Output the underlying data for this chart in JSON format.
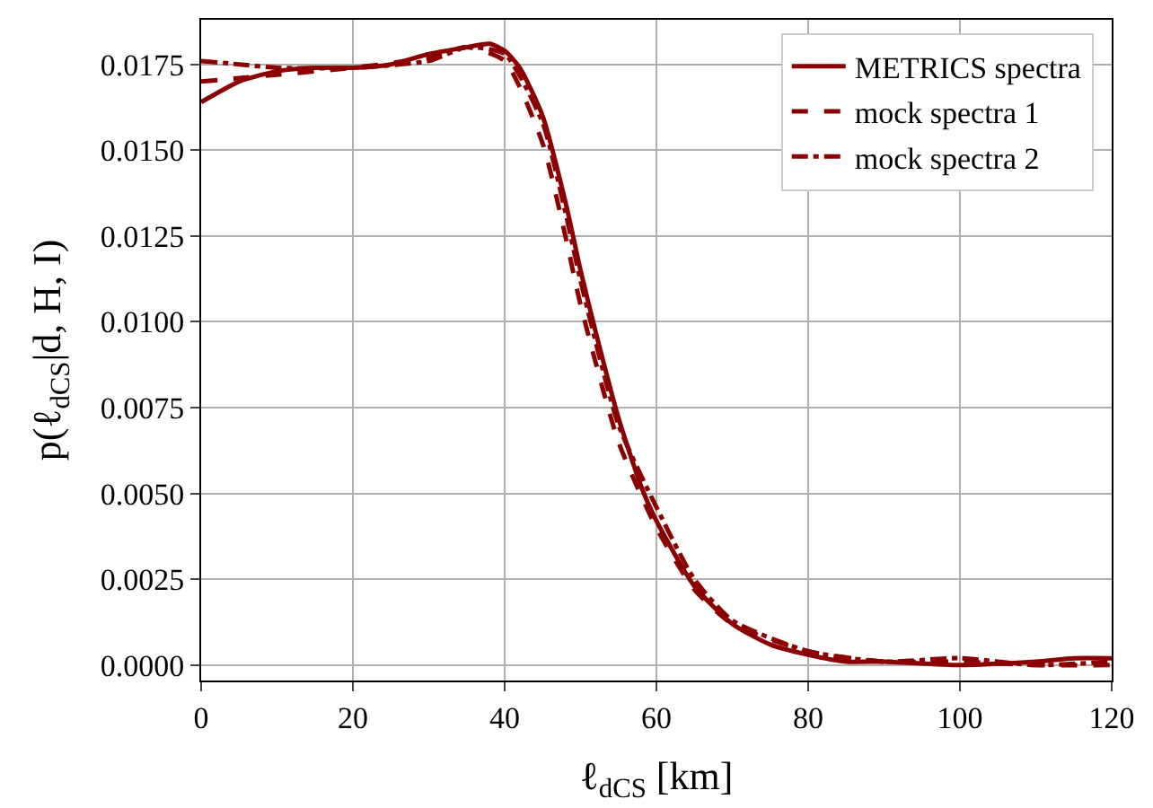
{
  "chart_data": {
    "type": "line",
    "xlabel": "ℓ$_{dCS}$ [km]",
    "ylabel": "p(ℓ$_{dCS}$|d, H, I)",
    "xlim": [
      0,
      120
    ],
    "xticks": [
      0,
      20,
      40,
      60,
      80,
      100,
      120
    ],
    "ylim": [
      -0.00045,
      0.0188
    ],
    "yticks": [
      {
        "value": 0,
        "label": "0.0000"
      },
      {
        "value": 0.0025,
        "label": "0.0025"
      },
      {
        "value": 0.005,
        "label": "0.0050"
      },
      {
        "value": 0.0075,
        "label": "0.0075"
      },
      {
        "value": 0.01,
        "label": "0.0100"
      },
      {
        "value": 0.0125,
        "label": "0.0125"
      },
      {
        "value": 0.015,
        "label": "0.0150"
      },
      {
        "value": 0.0175,
        "label": "0.0175"
      }
    ],
    "grid": true,
    "legend": "top right",
    "series": [
      {
        "name": "METRICS spectra",
        "color": "#8b0000",
        "line_style": "solid",
        "x": [
          0,
          5,
          10,
          15,
          20,
          25,
          30,
          35,
          38,
          40,
          42,
          45,
          48,
          50,
          52,
          55,
          58,
          60,
          65,
          70,
          75,
          80,
          85,
          90,
          100,
          110,
          115,
          120
        ],
        "values": [
          0.0164,
          0.017,
          0.0173,
          0.0174,
          0.0174,
          0.0175,
          0.0178,
          0.018,
          0.0181,
          0.0179,
          0.0174,
          0.016,
          0.0135,
          0.0115,
          0.0097,
          0.0072,
          0.0052,
          0.0042,
          0.0023,
          0.0012,
          0.0006,
          0.0003,
          0.0001,
          0.0001,
          0.0,
          0.0001,
          0.0002,
          0.0002
        ]
      },
      {
        "name": "mock spectra 1",
        "color": "#8b0000",
        "line_style": "dashed",
        "x": [
          0,
          5,
          10,
          20,
          30,
          35,
          40,
          45,
          48,
          50,
          55,
          60,
          65,
          70,
          80,
          90,
          100,
          110,
          120
        ],
        "values": [
          0.017,
          0.0171,
          0.0172,
          0.0174,
          0.0177,
          0.018,
          0.0176,
          0.0152,
          0.0125,
          0.0105,
          0.0065,
          0.004,
          0.0022,
          0.0012,
          0.0004,
          0.0001,
          0.0001,
          0.0,
          0.0
        ]
      },
      {
        "name": "mock spectra 2",
        "color": "#8b0000",
        "line_style": "dashdot",
        "x": [
          0,
          5,
          10,
          20,
          30,
          35,
          40,
          45,
          48,
          50,
          55,
          60,
          65,
          70,
          80,
          90,
          100,
          110,
          120
        ],
        "values": [
          0.0176,
          0.0175,
          0.0174,
          0.0174,
          0.0176,
          0.018,
          0.0178,
          0.0158,
          0.0132,
          0.0112,
          0.007,
          0.0046,
          0.0025,
          0.0013,
          0.0004,
          0.0001,
          0.0002,
          0.0,
          0.0001
        ]
      }
    ]
  }
}
